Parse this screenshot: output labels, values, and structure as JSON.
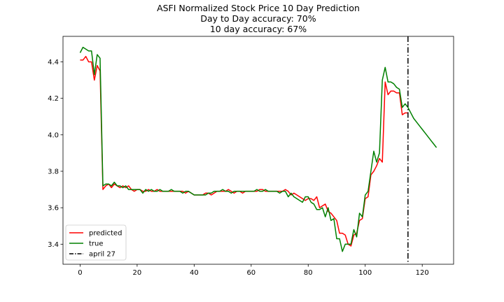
{
  "chart_data": {
    "type": "line",
    "title_lines": [
      "ASFI Normalized Stock Price 10 Day Prediction",
      "Day to Day accuracy: 70%",
      "10 day accuracy: 67%"
    ],
    "xlabel": "",
    "ylabel": "",
    "xlim": [
      -6,
      131
    ],
    "ylim": [
      3.29,
      4.54
    ],
    "xticks": [
      0,
      20,
      40,
      60,
      80,
      100,
      120
    ],
    "yticks": [
      3.4,
      3.6,
      3.8,
      4.0,
      4.2,
      4.4
    ],
    "grid": false,
    "legend_position": "lower-left",
    "series": [
      {
        "name": "predicted",
        "color": "#ff0000",
        "points": [
          [
            0,
            4.41
          ],
          [
            1,
            4.41
          ],
          [
            2,
            4.43
          ],
          [
            3,
            4.4
          ],
          [
            4,
            4.4
          ],
          [
            5,
            4.3
          ],
          [
            6,
            4.38
          ],
          [
            7,
            4.35
          ],
          [
            8,
            3.7
          ],
          [
            9,
            3.72
          ],
          [
            10,
            3.73
          ],
          [
            11,
            3.71
          ],
          [
            12,
            3.73
          ],
          [
            13,
            3.72
          ],
          [
            14,
            3.71
          ],
          [
            15,
            3.72
          ],
          [
            16,
            3.71
          ],
          [
            17,
            3.72
          ],
          [
            18,
            3.7
          ],
          [
            19,
            3.69
          ],
          [
            20,
            3.7
          ],
          [
            21,
            3.7
          ],
          [
            22,
            3.69
          ],
          [
            23,
            3.69
          ],
          [
            24,
            3.7
          ],
          [
            25,
            3.69
          ],
          [
            26,
            3.69
          ],
          [
            27,
            3.7
          ],
          [
            28,
            3.69
          ],
          [
            29,
            3.69
          ],
          [
            30,
            3.69
          ],
          [
            31,
            3.69
          ],
          [
            32,
            3.69
          ],
          [
            33,
            3.69
          ],
          [
            34,
            3.69
          ],
          [
            35,
            3.69
          ],
          [
            36,
            3.69
          ],
          [
            37,
            3.68
          ],
          [
            38,
            3.69
          ],
          [
            39,
            3.68
          ],
          [
            40,
            3.67
          ],
          [
            41,
            3.67
          ],
          [
            42,
            3.67
          ],
          [
            43,
            3.67
          ],
          [
            44,
            3.68
          ],
          [
            45,
            3.68
          ],
          [
            46,
            3.67
          ],
          [
            47,
            3.68
          ],
          [
            48,
            3.69
          ],
          [
            49,
            3.69
          ],
          [
            50,
            3.69
          ],
          [
            51,
            3.69
          ],
          [
            52,
            3.7
          ],
          [
            53,
            3.69
          ],
          [
            54,
            3.68
          ],
          [
            55,
            3.69
          ],
          [
            56,
            3.69
          ],
          [
            57,
            3.68
          ],
          [
            58,
            3.69
          ],
          [
            59,
            3.69
          ],
          [
            60,
            3.69
          ],
          [
            61,
            3.69
          ],
          [
            62,
            3.69
          ],
          [
            63,
            3.7
          ],
          [
            64,
            3.7
          ],
          [
            65,
            3.69
          ],
          [
            66,
            3.69
          ],
          [
            67,
            3.69
          ],
          [
            68,
            3.69
          ],
          [
            69,
            3.69
          ],
          [
            70,
            3.69
          ],
          [
            71,
            3.69
          ],
          [
            72,
            3.7
          ],
          [
            73,
            3.69
          ],
          [
            74,
            3.67
          ],
          [
            75,
            3.68
          ],
          [
            76,
            3.67
          ],
          [
            77,
            3.66
          ],
          [
            78,
            3.65
          ],
          [
            79,
            3.64
          ],
          [
            80,
            3.65
          ],
          [
            81,
            3.65
          ],
          [
            82,
            3.64
          ],
          [
            83,
            3.66
          ],
          [
            84,
            3.6
          ],
          [
            85,
            3.61
          ],
          [
            86,
            3.62
          ],
          [
            87,
            3.58
          ],
          [
            88,
            3.57
          ],
          [
            89,
            3.55
          ],
          [
            90,
            3.53
          ],
          [
            91,
            3.46
          ],
          [
            92,
            3.46
          ],
          [
            93,
            3.45
          ],
          [
            94,
            3.4
          ],
          [
            95,
            3.39
          ],
          [
            96,
            3.45
          ],
          [
            97,
            3.46
          ],
          [
            98,
            3.53
          ],
          [
            99,
            3.54
          ],
          [
            100,
            3.65
          ],
          [
            101,
            3.66
          ],
          [
            102,
            3.78
          ],
          [
            103,
            3.8
          ],
          [
            104,
            3.83
          ],
          [
            105,
            3.87
          ],
          [
            106,
            3.85
          ],
          [
            107,
            4.29
          ],
          [
            108,
            4.22
          ],
          [
            109,
            4.24
          ],
          [
            110,
            4.24
          ],
          [
            111,
            4.23
          ],
          [
            112,
            4.23
          ],
          [
            113,
            4.11
          ],
          [
            114,
            4.12
          ],
          [
            115,
            4.12
          ]
        ]
      },
      {
        "name": "true",
        "color": "#008000",
        "points": [
          [
            0,
            4.45
          ],
          [
            1,
            4.48
          ],
          [
            2,
            4.47
          ],
          [
            3,
            4.46
          ],
          [
            4,
            4.46
          ],
          [
            5,
            4.33
          ],
          [
            6,
            4.44
          ],
          [
            7,
            4.42
          ],
          [
            8,
            3.72
          ],
          [
            9,
            3.73
          ],
          [
            10,
            3.73
          ],
          [
            11,
            3.72
          ],
          [
            12,
            3.74
          ],
          [
            13,
            3.72
          ],
          [
            14,
            3.72
          ],
          [
            15,
            3.71
          ],
          [
            16,
            3.72
          ],
          [
            17,
            3.7
          ],
          [
            18,
            3.7
          ],
          [
            19,
            3.7
          ],
          [
            20,
            3.7
          ],
          [
            21,
            3.7
          ],
          [
            22,
            3.68
          ],
          [
            23,
            3.7
          ],
          [
            24,
            3.69
          ],
          [
            25,
            3.7
          ],
          [
            26,
            3.69
          ],
          [
            27,
            3.69
          ],
          [
            28,
            3.7
          ],
          [
            29,
            3.69
          ],
          [
            30,
            3.69
          ],
          [
            31,
            3.69
          ],
          [
            32,
            3.7
          ],
          [
            33,
            3.69
          ],
          [
            34,
            3.69
          ],
          [
            35,
            3.69
          ],
          [
            36,
            3.68
          ],
          [
            37,
            3.69
          ],
          [
            38,
            3.69
          ],
          [
            39,
            3.68
          ],
          [
            40,
            3.67
          ],
          [
            41,
            3.67
          ],
          [
            42,
            3.67
          ],
          [
            43,
            3.67
          ],
          [
            44,
            3.67
          ],
          [
            45,
            3.68
          ],
          [
            46,
            3.68
          ],
          [
            47,
            3.69
          ],
          [
            48,
            3.69
          ],
          [
            49,
            3.69
          ],
          [
            50,
            3.7
          ],
          [
            51,
            3.69
          ],
          [
            52,
            3.69
          ],
          [
            53,
            3.68
          ],
          [
            54,
            3.69
          ],
          [
            55,
            3.69
          ],
          [
            56,
            3.69
          ],
          [
            57,
            3.69
          ],
          [
            58,
            3.69
          ],
          [
            59,
            3.69
          ],
          [
            60,
            3.69
          ],
          [
            61,
            3.69
          ],
          [
            62,
            3.7
          ],
          [
            63,
            3.69
          ],
          [
            64,
            3.69
          ],
          [
            65,
            3.7
          ],
          [
            66,
            3.69
          ],
          [
            67,
            3.69
          ],
          [
            68,
            3.69
          ],
          [
            69,
            3.69
          ],
          [
            70,
            3.68
          ],
          [
            71,
            3.69
          ],
          [
            72,
            3.69
          ],
          [
            73,
            3.66
          ],
          [
            74,
            3.68
          ],
          [
            75,
            3.66
          ],
          [
            76,
            3.65
          ],
          [
            77,
            3.64
          ],
          [
            78,
            3.63
          ],
          [
            79,
            3.66
          ],
          [
            80,
            3.66
          ],
          [
            81,
            3.63
          ],
          [
            82,
            3.62
          ],
          [
            83,
            3.59
          ],
          [
            84,
            3.59
          ],
          [
            85,
            3.6
          ],
          [
            86,
            3.55
          ],
          [
            87,
            3.6
          ],
          [
            88,
            3.53
          ],
          [
            89,
            3.54
          ],
          [
            90,
            3.43
          ],
          [
            91,
            3.43
          ],
          [
            92,
            3.36
          ],
          [
            93,
            3.4
          ],
          [
            94,
            3.4
          ],
          [
            95,
            3.4
          ],
          [
            96,
            3.48
          ],
          [
            97,
            3.44
          ],
          [
            98,
            3.57
          ],
          [
            99,
            3.55
          ],
          [
            100,
            3.67
          ],
          [
            101,
            3.69
          ],
          [
            102,
            3.8
          ],
          [
            103,
            3.91
          ],
          [
            104,
            3.85
          ],
          [
            105,
            3.9
          ],
          [
            106,
            4.3
          ],
          [
            107,
            4.37
          ],
          [
            108,
            4.29
          ],
          [
            109,
            4.29
          ],
          [
            110,
            4.28
          ],
          [
            111,
            4.26
          ],
          [
            112,
            4.25
          ],
          [
            113,
            4.15
          ],
          [
            114,
            4.17
          ],
          [
            115,
            4.15
          ],
          [
            116,
            4.12
          ],
          [
            117,
            4.09
          ],
          [
            118,
            4.07
          ],
          [
            119,
            4.05
          ],
          [
            120,
            4.03
          ],
          [
            121,
            4.01
          ],
          [
            122,
            3.99
          ],
          [
            123,
            3.97
          ],
          [
            124,
            3.95
          ],
          [
            125,
            3.93
          ]
        ]
      }
    ],
    "vline": {
      "name": "april 27",
      "x": 115,
      "color": "#000000",
      "style": "dash-dot"
    },
    "legend_entries": [
      "predicted",
      "true",
      "april 27"
    ]
  }
}
